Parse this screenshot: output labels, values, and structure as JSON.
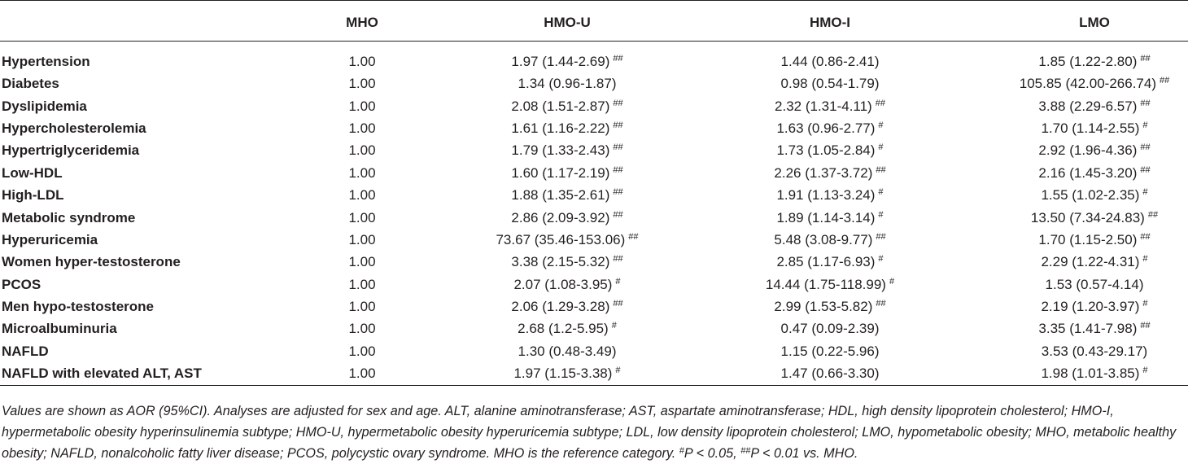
{
  "table": {
    "header": [
      "MHO",
      "HMO-U",
      "HMO-I",
      "LMO"
    ],
    "rows": [
      {
        "label": "Hypertension",
        "cells": [
          "1.00",
          {
            "text": "1.97 (1.44-2.69)",
            "sup": "##"
          },
          "1.44 (0.86-2.41)",
          {
            "text": "1.85 (1.22-2.80)",
            "sup": "##"
          }
        ]
      },
      {
        "label": "Diabetes",
        "cells": [
          "1.00",
          "1.34 (0.96-1.87)",
          "0.98 (0.54-1.79)",
          {
            "text": "105.85 (42.00-266.74)",
            "sup": "##"
          }
        ]
      },
      {
        "label": "Dyslipidemia",
        "cells": [
          "1.00",
          {
            "text": "2.08 (1.51-2.87)",
            "sup": "##"
          },
          {
            "text": "2.32 (1.31-4.11)",
            "sup": "##"
          },
          {
            "text": "3.88 (2.29-6.57)",
            "sup": "##"
          }
        ]
      },
      {
        "label": "Hypercholesterolemia",
        "cells": [
          "1.00",
          {
            "text": "1.61 (1.16-2.22)",
            "sup": "##"
          },
          {
            "text": "1.63 (0.96-2.77)",
            "sup": "#"
          },
          {
            "text": "1.70 (1.14-2.55)",
            "sup": "#"
          }
        ]
      },
      {
        "label": "Hypertriglyceridemia",
        "cells": [
          "1.00",
          {
            "text": "1.79 (1.33-2.43)",
            "sup": "##"
          },
          {
            "text": "1.73 (1.05-2.84)",
            "sup": "#"
          },
          {
            "text": "2.92 (1.96-4.36)",
            "sup": "##"
          }
        ]
      },
      {
        "label": "Low-HDL",
        "cells": [
          "1.00",
          {
            "text": "1.60 (1.17-2.19)",
            "sup": "##"
          },
          {
            "text": "2.26 (1.37-3.72)",
            "sup": "##"
          },
          {
            "text": "2.16 (1.45-3.20)",
            "sup": "##"
          }
        ]
      },
      {
        "label": "High-LDL",
        "cells": [
          "1.00",
          {
            "text": "1.88 (1.35-2.61)",
            "sup": "##"
          },
          {
            "text": "1.91 (1.13-3.24)",
            "sup": "#"
          },
          {
            "text": "1.55 (1.02-2.35)",
            "sup": "#"
          }
        ]
      },
      {
        "label": "Metabolic syndrome",
        "cells": [
          "1.00",
          {
            "text": "2.86 (2.09-3.92)",
            "sup": "##"
          },
          {
            "text": "1.89 (1.14-3.14)",
            "sup": "#"
          },
          {
            "text": "13.50 (7.34-24.83)",
            "sup": "##"
          }
        ]
      },
      {
        "label": "Hyperuricemia",
        "cells": [
          "1.00",
          {
            "text": "73.67 (35.46-153.06)",
            "sup": "##"
          },
          {
            "text": "5.48 (3.08-9.77)",
            "sup": "##"
          },
          {
            "text": "1.70 (1.15-2.50)",
            "sup": "##"
          }
        ]
      },
      {
        "label": "Women hyper-testosterone",
        "cells": [
          "1.00",
          {
            "text": "3.38 (2.15-5.32)",
            "sup": "##"
          },
          {
            "text": "2.85 (1.17-6.93)",
            "sup": "#"
          },
          {
            "text": "2.29 (1.22-4.31)",
            "sup": "#"
          }
        ]
      },
      {
        "label": "PCOS",
        "cells": [
          "1.00",
          {
            "text": "2.07 (1.08-3.95)",
            "sup": "#"
          },
          {
            "text": "14.44 (1.75-118.99)",
            "sup": "#"
          },
          "1.53 (0.57-4.14)"
        ]
      },
      {
        "label": "Men hypo-testosterone",
        "cells": [
          "1.00",
          {
            "text": "2.06 (1.29-3.28)",
            "sup": "##"
          },
          {
            "text": "2.99 (1.53-5.82)",
            "sup": "##"
          },
          {
            "text": "2.19 (1.20-3.97)",
            "sup": "#"
          }
        ]
      },
      {
        "label": "Microalbuminuria",
        "cells": [
          "1.00",
          {
            "text": "2.68 (1.2-5.95)",
            "sup": "#"
          },
          "0.47 (0.09-2.39)",
          {
            "text": "3.35 (1.41-7.98)",
            "sup": "##"
          }
        ]
      },
      {
        "label": "NAFLD",
        "cells": [
          "1.00",
          "1.30 (0.48-3.49)",
          "1.15 (0.22-5.96)",
          "3.53 (0.43-29.17)"
        ]
      },
      {
        "label": "NAFLD with elevated ALT, AST",
        "cells": [
          "1.00",
          {
            "text": "1.97 (1.15-3.38)",
            "sup": "#"
          },
          "1.47 (0.66-3.30)",
          {
            "text": "1.98 (1.01-3.85)",
            "sup": "#"
          }
        ]
      }
    ]
  },
  "footnote": [
    "Values are shown as AOR (95%CI). Analyses are adjusted for sex and age. ALT, alanine aminotransferase; AST, aspartate aminotransferase; HDL, high density lipoprotein cholesterol; HMO-I, hypermetabolic obesity hyperinsulinemia subtype; HMO-U, hypermetabolic obesity hyperuricemia subtype; LDL, low density lipoprotein cholesterol; LMO, hypometabolic obesity; MHO, metabolic healthy obesity; NAFLD, nonalcoholic fatty liver disease; PCOS, polycystic ovary syndrome. MHO is the reference category. ",
    "#",
    "P < 0.05, ",
    "##",
    "P < 0.01 vs. MHO."
  ]
}
